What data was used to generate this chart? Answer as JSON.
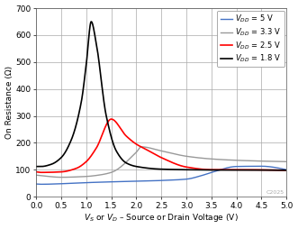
{
  "xlabel": "$V_S$ or $V_D$ – Source or Drain Voltage (V)",
  "ylabel": "On Resistance (Ω)",
  "xlim": [
    0,
    5
  ],
  "ylim": [
    0,
    700
  ],
  "xticks": [
    0,
    0.5,
    1.0,
    1.5,
    2.0,
    2.5,
    3.0,
    3.5,
    4.0,
    4.5,
    5.0
  ],
  "yticks": [
    0,
    100,
    200,
    300,
    400,
    500,
    600,
    700
  ],
  "legend_entries": [
    "$V_{DD}$ = 5 V",
    "$V_{DD}$ = 3.3 V",
    "$V_{DD}$ = 2.5 V",
    "$V_{DD}$ = 1.8 V"
  ],
  "colors": [
    "#4472c4",
    "#999999",
    "#ff0000",
    "#000000"
  ],
  "linewidths": [
    1.0,
    1.0,
    1.2,
    1.2
  ],
  "background_color": "#ffffff",
  "watermark": "C2025",
  "curve_5V": {
    "x": [
      0,
      0.1,
      0.5,
      1.0,
      1.5,
      2.0,
      2.5,
      3.0,
      3.3,
      3.5,
      4.0,
      4.5,
      5.0
    ],
    "y": [
      47,
      46,
      48,
      52,
      55,
      57,
      60,
      65,
      78,
      90,
      112,
      113,
      100
    ]
  },
  "curve_3_3V": {
    "x": [
      0,
      0.1,
      0.5,
      1.0,
      1.25,
      1.5,
      2.0,
      2.1,
      2.5,
      3.0,
      3.5,
      4.0,
      4.5,
      5.0
    ],
    "y": [
      80,
      78,
      72,
      75,
      80,
      90,
      165,
      185,
      170,
      150,
      140,
      135,
      132,
      130
    ]
  },
  "curve_2_5V": {
    "x": [
      0,
      0.1,
      0.5,
      0.8,
      1.0,
      1.2,
      1.5,
      1.8,
      2.0,
      2.2,
      2.5,
      3.0,
      3.5,
      4.0,
      5.0
    ],
    "y": [
      92,
      90,
      92,
      105,
      130,
      180,
      288,
      225,
      195,
      175,
      145,
      110,
      100,
      100,
      98
    ]
  },
  "curve_1_8V": {
    "x": [
      0,
      0.1,
      0.3,
      0.5,
      0.7,
      0.9,
      1.0,
      1.1,
      1.2,
      1.4,
      1.6,
      1.8,
      2.0,
      2.5,
      3.0,
      3.5,
      4.0,
      5.0
    ],
    "y": [
      112,
      112,
      120,
      145,
      210,
      350,
      490,
      650,
      570,
      300,
      170,
      125,
      112,
      102,
      100,
      99,
      99,
      98
    ]
  }
}
